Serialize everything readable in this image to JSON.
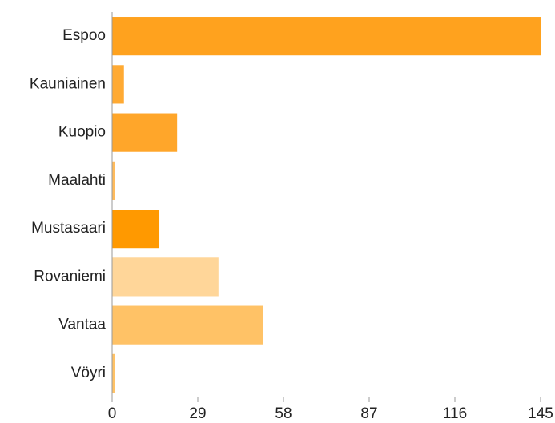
{
  "chart_data": {
    "type": "bar",
    "orientation": "horizontal",
    "categories": [
      "Espoo",
      "Kauniainen",
      "Kuopio",
      "Maalahti",
      "Mustasaari",
      "Rovaniemi",
      "Vantaa",
      "Vöyri"
    ],
    "values": [
      145,
      4,
      22,
      1,
      16,
      36,
      51,
      1
    ],
    "colors": [
      "#ffa21e",
      "#ffaa33",
      "#ffa62a",
      "#ffbb5c",
      "#ff9900",
      "#ffd699",
      "#ffc266",
      "#ffc266"
    ],
    "xlim": [
      0,
      145
    ],
    "xticks": [
      0,
      29,
      58,
      87,
      116,
      145
    ],
    "grid": false
  }
}
